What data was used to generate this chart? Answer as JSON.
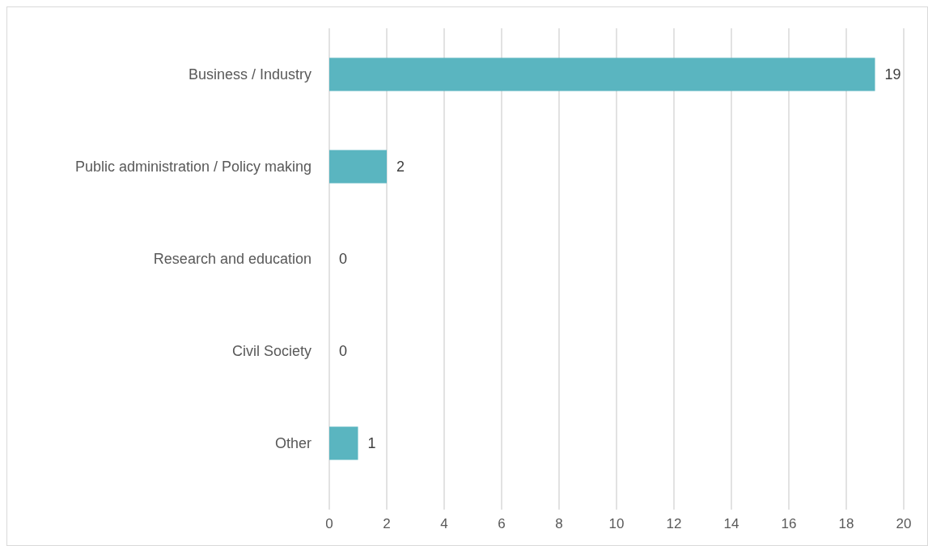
{
  "chart_data": {
    "type": "bar",
    "orientation": "horizontal",
    "categories": [
      "Business / Industry",
      "Public administration / Policy making",
      "Research and education",
      "Civil Society",
      "Other"
    ],
    "values": [
      19,
      2,
      0,
      0,
      1
    ],
    "color": "#5ab5c0",
    "xlim": [
      0,
      20
    ],
    "xticks": [
      0,
      2,
      4,
      6,
      8,
      10,
      12,
      14,
      16,
      18,
      20
    ],
    "grid": "x",
    "data_labels": true
  }
}
